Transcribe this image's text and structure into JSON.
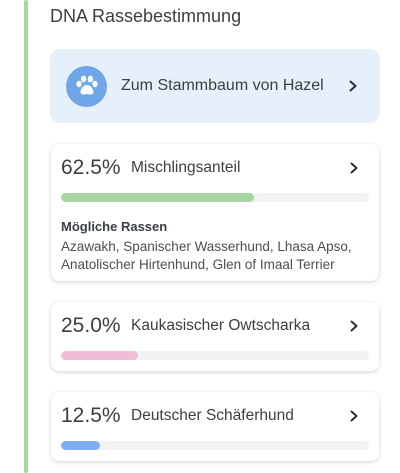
{
  "section": {
    "title": "DNA Rassebestimmung"
  },
  "pedigree_link": {
    "label": "Zum Stammbaum von Hazel",
    "icon": "paw-icon"
  },
  "colors": {
    "timeline": "#a8d6a0",
    "pedigree_bg": "#e6f0fb",
    "paw_circle": "#6fa6e8"
  },
  "breeds": [
    {
      "percent_label": "62.5%",
      "percent": 62.5,
      "name": "Mischlingsanteil",
      "bar_color": "#a8d6a0",
      "possible_title": "Mögliche Rassen",
      "possible_breeds": "Azawakh, Spanischer Wasserhund, Lhasa Apso, Anatolischer Hirtenhund, Glen of Imaal Terrier"
    },
    {
      "percent_label": "25.0%",
      "percent": 25.0,
      "name": "Kaukasischer Owtscharka",
      "bar_color": "#f1bcd6"
    },
    {
      "percent_label": "12.5%",
      "percent": 12.5,
      "name": "Deutscher Schäferhund",
      "bar_color": "#7faef0"
    }
  ]
}
